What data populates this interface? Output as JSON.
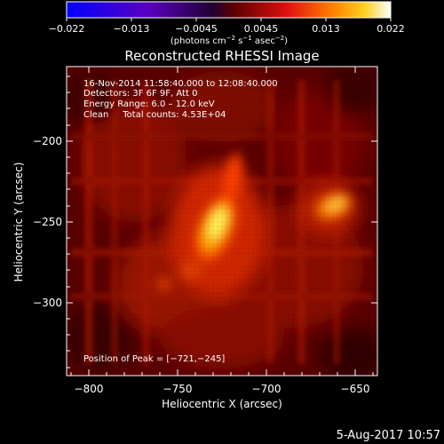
{
  "colorbar": {
    "ticks": [
      "−0.022",
      "−0.013",
      "−0.0045",
      "0.0045",
      "0.013",
      "0.022"
    ],
    "units_prefix": "(photons cm",
    "units_exp1": "−2",
    "units_mid": " s",
    "units_exp2": "−1",
    "units_mid2": " asec",
    "units_exp3": "−2",
    "units_suffix": ")"
  },
  "title": "Reconstructed RHESSI Image",
  "info": {
    "line1": "16-Nov-2014 11:58:40.000 to 12:08:40.000",
    "line2": "Detectors: 3F 6F 9F, Att 0",
    "line3": "Energy Range: 6.0 – 12.0 keV",
    "line4": "Clean     Total counts: 4.53E+04"
  },
  "peak_label": "Position of Peak = [−721,−245]",
  "axes": {
    "xlabel": "Heliocentric X (arcsec)",
    "ylabel": "Heliocentric Y (arcsec)",
    "xticks": [
      "−800",
      "−750",
      "−700",
      "−650"
    ],
    "yticks": [
      "−200",
      "−250",
      "−300"
    ]
  },
  "footer_date": "5-Aug-2017 10:57",
  "colors": {
    "background": "#000000",
    "foreground": "#ffffff"
  }
}
